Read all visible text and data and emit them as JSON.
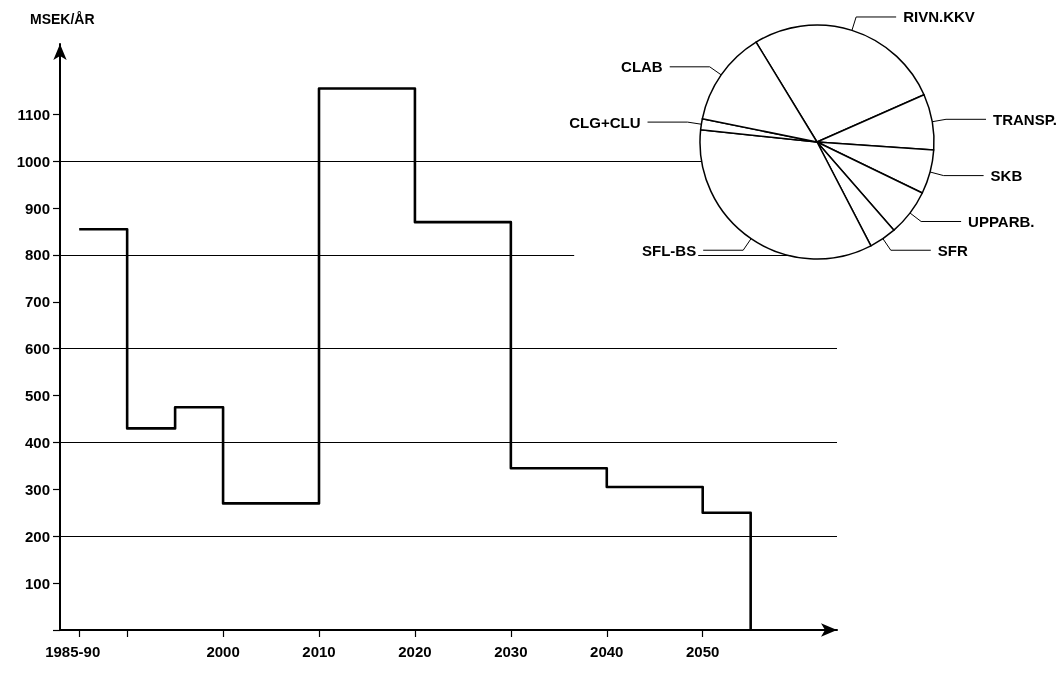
{
  "chart_data": [
    {
      "type": "step",
      "ylabel": "MSEK/ÅR",
      "x": [
        1985,
        1990,
        1995,
        2000,
        2010,
        2020,
        2030,
        2040,
        2050,
        2055
      ],
      "values": [
        855,
        430,
        475,
        270,
        1155,
        870,
        345,
        305,
        250,
        0
      ],
      "color": "#000000",
      "xlim": [
        1983,
        2064
      ],
      "xticks": [
        {
          "value": 1985,
          "label": null
        },
        {
          "value": 1990,
          "label": null
        },
        2000,
        2010,
        2020,
        2030,
        2040,
        2050
      ],
      "ylim": [
        0,
        1250
      ],
      "yticks": [
        {
          "value": 0,
          "label": null
        },
        100,
        200,
        300,
        400,
        500,
        600,
        700,
        800,
        900,
        1000,
        1100
      ],
      "ref_lines": [
        {
          "axis": "y",
          "value": 200
        },
        {
          "axis": "y",
          "value": 400
        },
        {
          "axis": "y",
          "value": 600
        },
        {
          "axis": "y",
          "value": 800
        },
        {
          "axis": "y",
          "value": 1000
        }
      ],
      "annotations": [
        "1985-90"
      ],
      "marker": "none",
      "grid": false,
      "legend": false
    },
    {
      "type": "pie",
      "categories": [
        "RIVN.KKV",
        "TRANSP.",
        "SKB",
        "UPPARB.",
        "SFR",
        "SFL-BS",
        "CLG+CLU",
        "CLAB"
      ],
      "values": [
        27.1,
        7.7,
        6.1,
        6.4,
        3.8,
        34.3,
        1.5,
        13.1
      ],
      "colors": [
        "#ffffff",
        "#ffffff",
        "#ffffff",
        "#ffffff",
        "#ffffff",
        "#ffffff",
        "#ffffff",
        "#ffffff"
      ],
      "legend": false
    }
  ]
}
